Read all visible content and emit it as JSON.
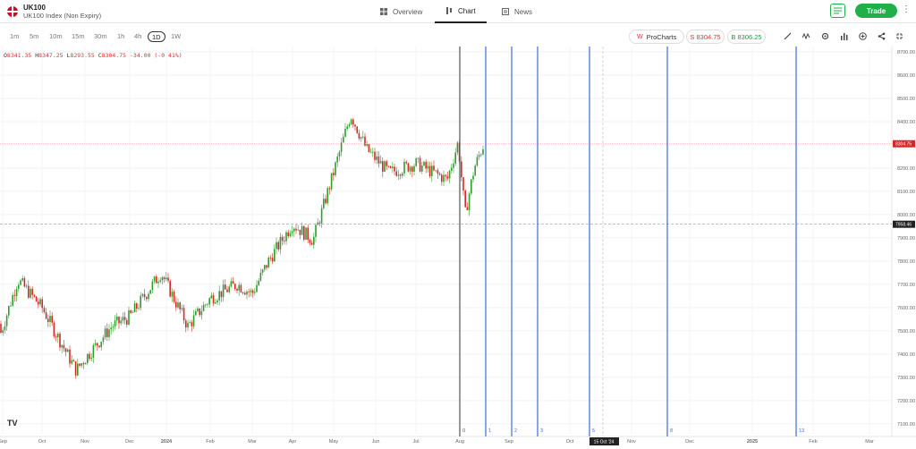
{
  "header": {
    "symbol": "UK100",
    "name": "UK100 Index (Non Expiry)",
    "tabs": [
      {
        "label": "Overview",
        "icon": "grid-icon"
      },
      {
        "label": "Chart",
        "icon": "chart-icon"
      },
      {
        "label": "News",
        "icon": "news-icon"
      }
    ],
    "trade_label": "Trade"
  },
  "toolbar": {
    "timeframes": [
      "1m",
      "5m",
      "10m",
      "15m",
      "30m",
      "1h",
      "4h",
      "1D",
      "1W"
    ],
    "active_timeframe": "1D",
    "procharts_label": "ProCharts",
    "sell_label": "S 8304.75",
    "buy_label": "B 8306.25"
  },
  "ohlc": {
    "o_label": "O",
    "o": "8341.35",
    "h_label": "H",
    "h": "8347.25",
    "l_label": "L",
    "l": "8293.55",
    "c_label": "C",
    "c": "8304.75",
    "change": "-34.00 (-0.41%)"
  },
  "colors": {
    "up": "#2ca02c",
    "down": "#d62728",
    "accent": "#1fb04a",
    "vline": "#3b6fe0"
  },
  "logo": "TV",
  "chart_data": {
    "type": "candlestick",
    "y_ticks": [
      "8700.00",
      "8600.00",
      "8500.00",
      "8400.00",
      "8300.00",
      "8200.00",
      "8100.00",
      "8000.00",
      "7900.00",
      "7800.00",
      "7700.00",
      "7600.00",
      "7500.00",
      "7400.00",
      "7300.00",
      "7200.00",
      "7100.00"
    ],
    "ylim": [
      7080,
      8700
    ],
    "x_labels": [
      "Sep",
      "Oct",
      "Nov",
      "Dec",
      "2024",
      "Feb",
      "Mar",
      "Apr",
      "May",
      "Jun",
      "Jul",
      "Aug",
      "Sep",
      "Oct",
      "Nov",
      "Dec",
      "2025",
      "Feb",
      "Mar"
    ],
    "current_price_label": "8304.75",
    "dashed_level_label": "7958.46",
    "cursor_date_label": "15 Oct '24",
    "vline_numbers": [
      "0",
      "1",
      "2",
      "3",
      "5",
      "8",
      "13"
    ],
    "series_monthly_approx": [
      {
        "month": "Sep 2023",
        "close": 7600
      },
      {
        "month": "Oct 2023",
        "close": 7320
      },
      {
        "month": "Nov 2023",
        "close": 7450
      },
      {
        "month": "Dec 2023",
        "close": 7730
      },
      {
        "month": "Jan 2024",
        "close": 7630
      },
      {
        "month": "Feb 2024",
        "close": 7630
      },
      {
        "month": "Mar 2024",
        "close": 7950
      },
      {
        "month": "Apr 2024",
        "close": 8140
      },
      {
        "month": "May 2024",
        "close": 8280
      },
      {
        "month": "Jun 2024",
        "close": 8160
      },
      {
        "month": "Jul 2024",
        "close": 8360
      },
      {
        "month": "Aug 2024",
        "close": 8305
      }
    ]
  }
}
